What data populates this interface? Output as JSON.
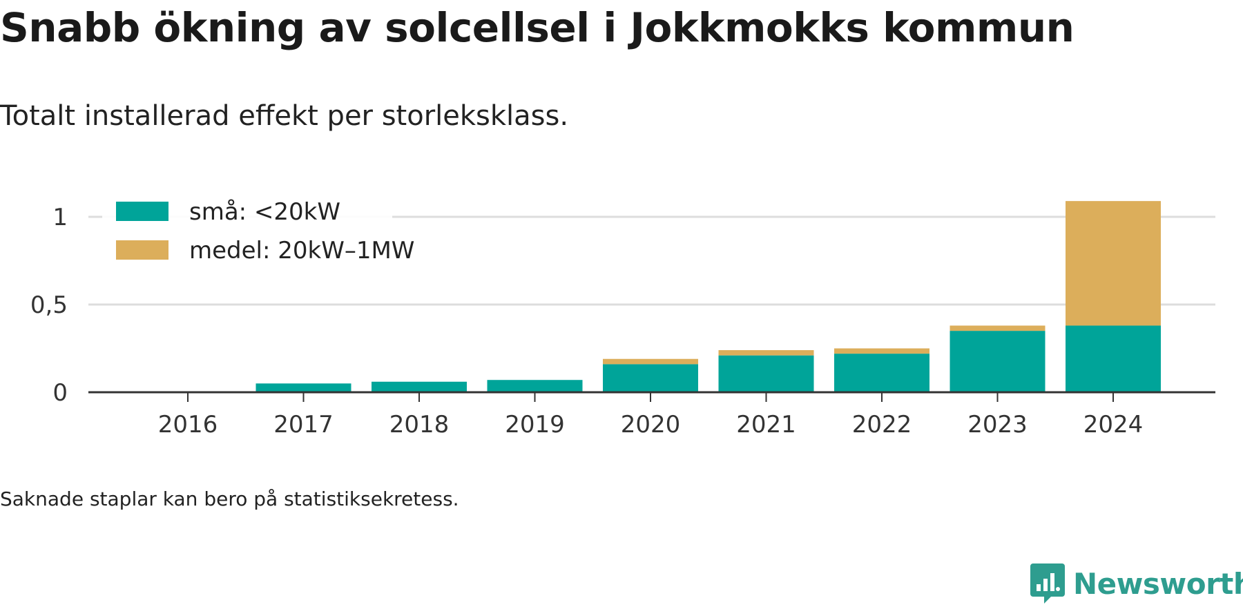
{
  "title": "Snabb ökning av solcellsel i Jokkmokks kommun",
  "subtitle": "Totalt installerad effekt per storleksklass.",
  "footnote": "Saknade staplar kan bero på statistiksekretess.",
  "brand": {
    "name": "Newsworthy",
    "icon": "newsworthy-logo-icon",
    "color": "#2e9d8f"
  },
  "chart_data": {
    "type": "bar",
    "stacked": true,
    "categories": [
      "2016",
      "2017",
      "2018",
      "2019",
      "2020",
      "2021",
      "2022",
      "2023",
      "2024"
    ],
    "series": [
      {
        "name": "små: <20kW",
        "color": "#00a499",
        "values": [
          0,
          0.05,
          0.06,
          0.07,
          0.16,
          0.21,
          0.22,
          0.35,
          0.38
        ]
      },
      {
        "name": "medel: 20kW–1MW",
        "color": "#dcae5b",
        "values": [
          0,
          0,
          0,
          0,
          0.03,
          0.03,
          0.03,
          0.03,
          0.71
        ]
      }
    ],
    "ylim": [
      0,
      1.1
    ],
    "yticks": [
      {
        "value": 0,
        "label": "0"
      },
      {
        "value": 0.5,
        "label": "0,5"
      },
      {
        "value": 1,
        "label": "1"
      }
    ],
    "grid": true,
    "legend": "top-left",
    "xlabel": "",
    "ylabel": ""
  }
}
